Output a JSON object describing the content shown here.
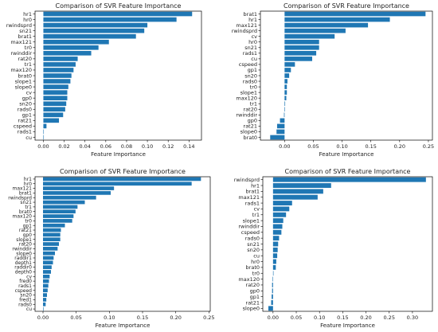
{
  "chart_data": [
    {
      "type": "bar",
      "orientation": "horizontal",
      "title": "Comparison of SVR Feature Importance",
      "xlabel": "Feature Importance",
      "ylabel": "",
      "xlim": [
        -0.008,
        0.152
      ],
      "xticks": [
        0.0,
        0.02,
        0.04,
        0.06,
        0.08,
        0.1,
        0.12,
        0.14
      ],
      "xtick_labels": [
        "0.00",
        "0.02",
        "0.04",
        "0.06",
        "0.08",
        "0.10",
        "0.12",
        "0.14"
      ],
      "color": "#1f77b4",
      "categories": [
        "hr1",
        "hr0",
        "rwindsprd",
        "sn21",
        "brat1",
        "max121",
        "tr0",
        "rwinddir",
        "rat20",
        "tr1",
        "max120",
        "brat0",
        "slope1",
        "slope0",
        "cv",
        "gp0",
        "sn20",
        "rads0",
        "gp1",
        "rat21",
        "cspeed",
        "rads1",
        "cu"
      ],
      "values": [
        0.143,
        0.128,
        0.1,
        0.097,
        0.089,
        0.063,
        0.053,
        0.046,
        0.033,
        0.031,
        0.029,
        0.027,
        0.026,
        0.024,
        0.023,
        0.023,
        0.022,
        0.021,
        0.019,
        0.015,
        0.003,
        0.0,
        0.0
      ]
    },
    {
      "type": "bar",
      "orientation": "horizontal",
      "title": "Comparison of SVR Feature Importance",
      "xlabel": "Feature Importance",
      "ylabel": "",
      "xlim": [
        -0.042,
        0.257
      ],
      "xticks": [
        0.0,
        0.05,
        0.1,
        0.15,
        0.2,
        0.25
      ],
      "xtick_labels": [
        "0.00",
        "0.05",
        "0.10",
        "0.15",
        "0.20",
        "0.25"
      ],
      "color": "#1f77b4",
      "categories": [
        "brat1",
        "hr1",
        "max121",
        "rwindsprd",
        "cv",
        "hr0",
        "sn21",
        "rads1",
        "cu",
        "cspeed",
        "gp1",
        "sn20",
        "rads0",
        "tr0",
        "slope1",
        "max120",
        "tr1",
        "rat20",
        "rwinddir",
        "gp0",
        "rat21",
        "slope0",
        "brat0"
      ],
      "values": [
        0.245,
        0.183,
        0.145,
        0.106,
        0.087,
        0.06,
        0.06,
        0.055,
        0.048,
        0.018,
        0.011,
        0.008,
        0.005,
        0.004,
        0.004,
        0.003,
        0.001,
        0.0,
        -0.001,
        -0.008,
        -0.013,
        -0.014,
        -0.025
      ]
    },
    {
      "type": "bar",
      "orientation": "horizontal",
      "title": "Comparison of SVR Feature Importance",
      "xlabel": "Feature Importance",
      "ylabel": "",
      "xlim": [
        -0.012,
        0.252
      ],
      "xticks": [
        0.0,
        0.05,
        0.1,
        0.15,
        0.2,
        0.25
      ],
      "xtick_labels": [
        "0.00",
        "0.05",
        "0.10",
        "0.15",
        "0.20",
        "0.25"
      ],
      "color": "#1f77b4",
      "categories": [
        "hr1",
        "hr0",
        "max121",
        "brat1",
        "rwindsprd",
        "sn21",
        "tr1",
        "brat0",
        "max120",
        "tr0",
        "gp1",
        "rat21",
        "gp0",
        "slope1",
        "rat20",
        "rwinddir",
        "slope0",
        "raddir1",
        "depth1",
        "raddir0",
        "depth0",
        "cv",
        "fred0",
        "rads1",
        "cspeed",
        "sn20",
        "fred1",
        "rads0",
        "cu"
      ],
      "values": [
        0.238,
        0.224,
        0.107,
        0.102,
        0.08,
        0.063,
        0.052,
        0.049,
        0.046,
        0.044,
        0.033,
        0.027,
        0.026,
        0.026,
        0.024,
        0.022,
        0.018,
        0.016,
        0.015,
        0.013,
        0.012,
        0.01,
        0.009,
        0.008,
        0.007,
        0.006,
        0.005,
        0.004,
        0.0
      ]
    },
    {
      "type": "bar",
      "orientation": "horizontal",
      "title": "Comparison of SVR Feature Importance",
      "xlabel": "Feature Importance",
      "ylabel": "",
      "xlim": [
        -0.022,
        0.343
      ],
      "xticks": [
        0.0,
        0.05,
        0.1,
        0.15,
        0.2,
        0.25,
        0.3
      ],
      "xtick_labels": [
        "0.00",
        "0.05",
        "0.10",
        "0.15",
        "0.20",
        "0.25",
        "0.30"
      ],
      "color": "#1f77b4",
      "categories": [
        "rwindsprd",
        "hr1",
        "brat1",
        "max121",
        "rads1",
        "cv",
        "tr1",
        "slope1",
        "rwinddir",
        "cspeed",
        "rads0",
        "sn21",
        "sn20",
        "cu",
        "hr0",
        "brat0",
        "tr0",
        "max120",
        "rat20",
        "gp0",
        "gp1",
        "rat21",
        "slope0"
      ],
      "values": [
        0.329,
        0.125,
        0.108,
        0.096,
        0.041,
        0.035,
        0.028,
        0.022,
        0.02,
        0.018,
        0.013,
        0.011,
        0.01,
        0.009,
        0.007,
        0.006,
        0.0,
        -0.001,
        -0.002,
        -0.002,
        -0.003,
        -0.004,
        -0.01
      ]
    }
  ]
}
